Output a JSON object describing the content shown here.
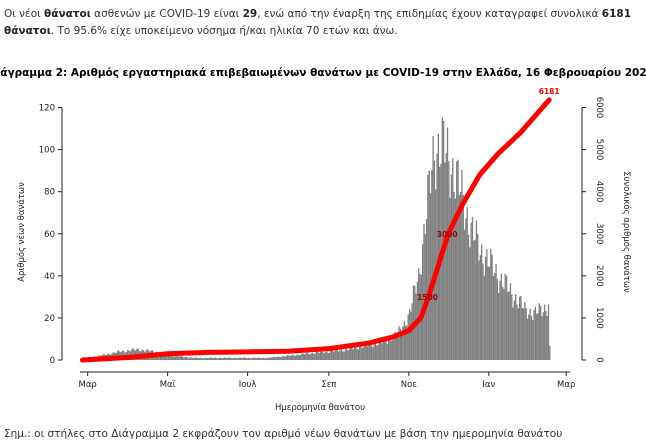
{
  "intro": {
    "p1": "Οι νέοι ",
    "b1": "θάνατοι",
    "p2": " ασθενών με COVID-19 είναι ",
    "b2": "29",
    "p3": ", ενώ από την έναρξη της επιδημίας έχουν καταγραφεί συνολικά ",
    "b3": "6181 θάνατοι",
    "p4": ".  Το 95.6% είχε υποκείμενο νόσημα ή/και ηλικία 70 ετών και άνω."
  },
  "footnote": "Σημ.: οι στήλες στο Διάγραμμα 2 εκφράζουν τον αριθμό νέων θανάτων με βάση την ημερομηνία θανάτου",
  "colors": {
    "bars": "#7f7f7f",
    "cumulative": "#ff0000"
  },
  "chart_data": {
    "type": "bar",
    "title": "Διάγραμμα 2: Αριθμός εργαστηριακά επιβεβαιωμένων θανάτων με COVID-19 στην Ελλάδα, 16 Φεβρουαρίου 2021",
    "xlabel": "Ημερομηνία θανάτου",
    "ylabel": "Αριθμός νέων θανάτων",
    "y2label": "Συνολικός αριθμός θανάτων",
    "ylim": [
      0,
      125
    ],
    "y2lim": [
      0,
      6250
    ],
    "yticks": [
      0,
      20,
      40,
      60,
      80,
      100,
      120
    ],
    "y2ticks": [
      0,
      1000,
      2000,
      3000,
      4000,
      5000,
      6000
    ],
    "month_ticks": [
      "Μαρ",
      "Μαϊ",
      "Ιουλ",
      "Σεπ",
      "Νοε",
      "Ιαν",
      "Μαρ"
    ],
    "grid": false,
    "daily_deaths_smoothed": [
      {
        "date": "2020-02-26",
        "value": 1
      },
      {
        "date": "2020-03-10",
        "value": 2
      },
      {
        "date": "2020-03-25",
        "value": 4
      },
      {
        "date": "2020-04-08",
        "value": 5
      },
      {
        "date": "2020-04-20",
        "value": 4
      },
      {
        "date": "2020-05-05",
        "value": 2
      },
      {
        "date": "2020-05-20",
        "value": 1
      },
      {
        "date": "2020-06-15",
        "value": 1
      },
      {
        "date": "2020-07-15",
        "value": 1
      },
      {
        "date": "2020-08-01",
        "value": 2
      },
      {
        "date": "2020-08-15",
        "value": 3
      },
      {
        "date": "2020-09-01",
        "value": 4
      },
      {
        "date": "2020-09-15",
        "value": 5
      },
      {
        "date": "2020-10-01",
        "value": 7
      },
      {
        "date": "2020-10-15",
        "value": 9
      },
      {
        "date": "2020-10-25",
        "value": 14
      },
      {
        "date": "2020-11-01",
        "value": 22
      },
      {
        "date": "2020-11-08",
        "value": 40
      },
      {
        "date": "2020-11-12",
        "value": 60
      },
      {
        "date": "2020-11-16",
        "value": 80
      },
      {
        "date": "2020-11-20",
        "value": 100
      },
      {
        "date": "2020-11-25",
        "value": 102
      },
      {
        "date": "2020-12-01",
        "value": 95
      },
      {
        "date": "2020-12-06",
        "value": 88
      },
      {
        "date": "2020-12-12",
        "value": 75
      },
      {
        "date": "2020-12-18",
        "value": 62
      },
      {
        "date": "2020-12-25",
        "value": 52
      },
      {
        "date": "2021-01-01",
        "value": 46
      },
      {
        "date": "2021-01-10",
        "value": 38
      },
      {
        "date": "2021-01-20",
        "value": 30
      },
      {
        "date": "2021-01-28",
        "value": 24
      },
      {
        "date": "2021-02-05",
        "value": 22
      },
      {
        "date": "2021-02-10",
        "value": 24
      },
      {
        "date": "2021-02-15",
        "value": 26
      },
      {
        "date": "2021-02-16",
        "value": 6
      }
    ],
    "cumulative_deaths": [
      {
        "date": "2020-02-26",
        "value": 0
      },
      {
        "date": "2020-04-01",
        "value": 60
      },
      {
        "date": "2020-05-01",
        "value": 150
      },
      {
        "date": "2020-06-01",
        "value": 180
      },
      {
        "date": "2020-07-01",
        "value": 192
      },
      {
        "date": "2020-08-01",
        "value": 210
      },
      {
        "date": "2020-09-01",
        "value": 270
      },
      {
        "date": "2020-10-01",
        "value": 400
      },
      {
        "date": "2020-10-20",
        "value": 550
      },
      {
        "date": "2020-11-01",
        "value": 700
      },
      {
        "date": "2020-11-10",
        "value": 1000
      },
      {
        "date": "2020-11-16",
        "value": 1500
      },
      {
        "date": "2020-11-23",
        "value": 2200
      },
      {
        "date": "2020-12-01",
        "value": 3000
      },
      {
        "date": "2020-12-12",
        "value": 3700
      },
      {
        "date": "2020-12-25",
        "value": 4400
      },
      {
        "date": "2021-01-08",
        "value": 4900
      },
      {
        "date": "2021-01-25",
        "value": 5400
      },
      {
        "date": "2021-02-16",
        "value": 6181
      }
    ],
    "annotations": [
      {
        "text": "6181",
        "date": "2021-02-16",
        "value": 6181
      },
      {
        "text": "3000",
        "date": "2020-12-01",
        "value": 3000
      },
      {
        "text": "1500",
        "date": "2020-11-16",
        "value": 1500
      }
    ]
  }
}
